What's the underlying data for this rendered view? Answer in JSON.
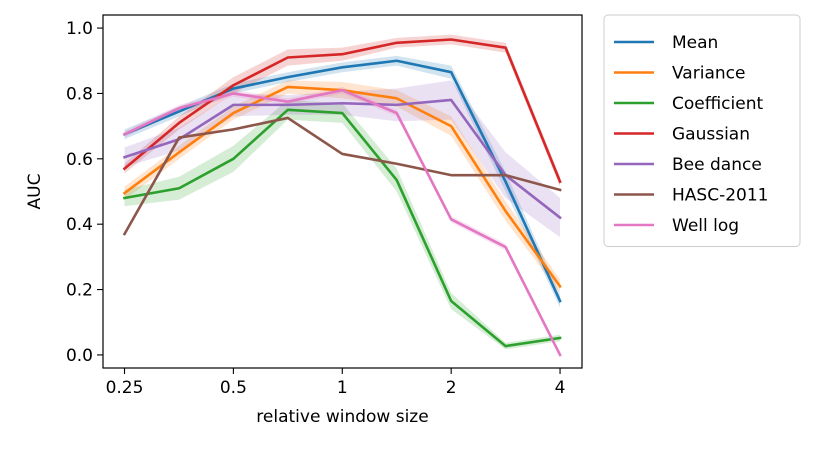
{
  "chart_data": {
    "type": "line",
    "title": "",
    "xlabel": "relative window size",
    "ylabel": "AUC",
    "x_scale": "log2",
    "x": [
      0.25,
      0.354,
      0.5,
      0.707,
      1,
      1.414,
      2,
      2.828,
      4
    ],
    "xticks": [
      0.25,
      0.5,
      1,
      2,
      4
    ],
    "xtick_labels": [
      "0.25",
      "0.5",
      "1",
      "2",
      "4"
    ],
    "xlim": [
      0.218,
      4.6
    ],
    "ylim": [
      -0.04,
      1.04
    ],
    "yticks": [
      0.0,
      0.2,
      0.4,
      0.6,
      0.8,
      1.0
    ],
    "ytick_labels": [
      "0.0",
      "0.2",
      "0.4",
      "0.6",
      "0.8",
      "1.0"
    ],
    "grid": false,
    "legend_placement": "outside-right-top",
    "series": [
      {
        "name": "Mean",
        "color": "#1f77b4",
        "values": [
          0.675,
          0.745,
          0.815,
          0.85,
          0.88,
          0.9,
          0.865,
          0.53,
          0.165
        ],
        "band": [
          0.015,
          0.015,
          0.015,
          0.015,
          0.015,
          0.015,
          0.02,
          0.03,
          0.02
        ]
      },
      {
        "name": "Variance",
        "color": "#ff7f0e",
        "values": [
          0.495,
          0.62,
          0.74,
          0.82,
          0.81,
          0.785,
          0.7,
          0.44,
          0.21
        ],
        "band": [
          0.02,
          0.02,
          0.02,
          0.02,
          0.025,
          0.025,
          0.03,
          0.03,
          0.02
        ]
      },
      {
        "name": "Coefficient",
        "color": "#2ca02c",
        "values": [
          0.48,
          0.51,
          0.6,
          0.75,
          0.74,
          0.535,
          0.165,
          0.027,
          0.052
        ],
        "band": [
          0.025,
          0.035,
          0.04,
          0.03,
          0.03,
          0.035,
          0.025,
          0.01,
          0.01
        ]
      },
      {
        "name": "Gaussian",
        "color": "#d62728",
        "values": [
          0.57,
          0.71,
          0.825,
          0.91,
          0.92,
          0.955,
          0.965,
          0.94,
          0.53
        ],
        "band": [
          0.015,
          0.02,
          0.025,
          0.025,
          0.02,
          0.015,
          0.015,
          0.015,
          0.015
        ]
      },
      {
        "name": "Bee dance",
        "color": "#9467bd",
        "values": [
          0.605,
          0.66,
          0.765,
          0.765,
          0.77,
          0.765,
          0.78,
          0.55,
          0.42
        ],
        "band": [
          0.03,
          0.035,
          0.035,
          0.03,
          0.035,
          0.05,
          0.06,
          0.07,
          0.06
        ]
      },
      {
        "name": "HASC-2011",
        "color": "#8c564b",
        "values": [
          0.37,
          0.665,
          0.69,
          0.725,
          0.615,
          0.585,
          0.55,
          0.55,
          0.505
        ],
        "band": [
          0,
          0,
          0,
          0,
          0,
          0,
          0,
          0,
          0
        ]
      },
      {
        "name": "Well log",
        "color": "#e377c2",
        "values": [
          0.675,
          0.755,
          0.8,
          0.775,
          0.81,
          0.74,
          0.415,
          0.33,
          0.0
        ],
        "band": [
          0.01,
          0.01,
          0.01,
          0.01,
          0.01,
          0.01,
          0.01,
          0.01,
          0.005
        ]
      }
    ]
  }
}
